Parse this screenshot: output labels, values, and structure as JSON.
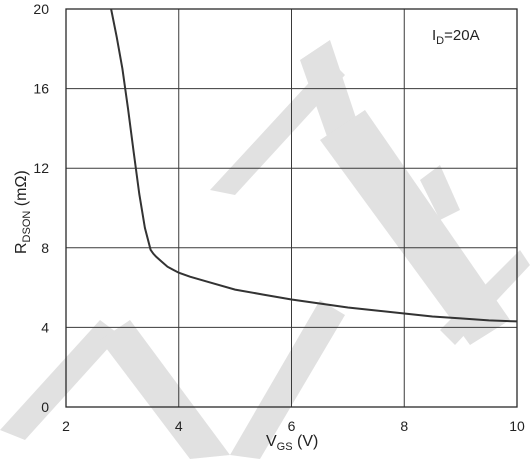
{
  "chart_data": {
    "type": "line",
    "title": "",
    "annotation": {
      "main": "I",
      "sub": "D",
      "suffix": "=20A"
    },
    "xlabel": {
      "main": "V",
      "sub": "GS",
      "suffix": " (V)"
    },
    "ylabel": {
      "main": "R",
      "sub": "DSON",
      "suffix": " (mΩ)"
    },
    "xlim": [
      2,
      10
    ],
    "ylim": [
      0,
      20
    ],
    "x_ticks": [
      "2",
      "4",
      "6",
      "8",
      "10"
    ],
    "y_ticks": [
      "0",
      "4",
      "8",
      "12",
      "16",
      "20"
    ],
    "x_tick_values": [
      2,
      4,
      6,
      8,
      10
    ],
    "y_tick_values": [
      0,
      4,
      8,
      12,
      16,
      20
    ],
    "x_grid_values": [
      2,
      4,
      6,
      8,
      10
    ],
    "y_grid_values": [
      0,
      4,
      8,
      12,
      16,
      20
    ],
    "grid": true,
    "series": [
      {
        "x": [
          2.8,
          2.9,
          3.0,
          3.1,
          3.2,
          3.3,
          3.4,
          3.5,
          3.55,
          3.6,
          3.7,
          3.8,
          3.9,
          4.0,
          4.2,
          4.5,
          5.0,
          5.5,
          6.0,
          6.5,
          7.0,
          7.5,
          8.0,
          8.5,
          9.0,
          9.5,
          10.0
        ],
        "y": [
          20.0,
          18.6,
          17.0,
          15.0,
          12.8,
          10.7,
          9.0,
          7.9,
          7.7,
          7.55,
          7.3,
          7.05,
          6.9,
          6.75,
          6.55,
          6.3,
          5.9,
          5.65,
          5.4,
          5.2,
          5.0,
          4.85,
          4.7,
          4.55,
          4.45,
          4.35,
          4.3
        ]
      }
    ],
    "colors": {
      "line": "#333333",
      "grid": "#3a3a3a",
      "watermark": "#d8d8d8"
    }
  }
}
